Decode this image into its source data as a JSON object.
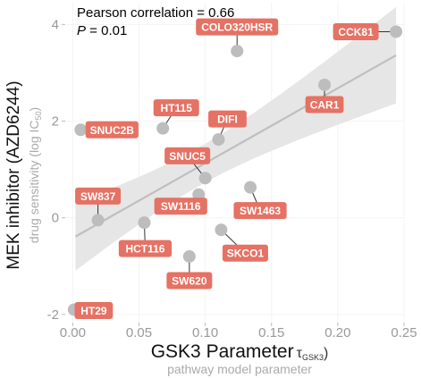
{
  "chart_data": {
    "type": "scatter",
    "xlabel": "GSK3 Parameter",
    "xlabel_symbol": "τ",
    "xlabel_symbol_sub": "GSK3",
    "xlabel_sub": "pathway model parameter",
    "ylabel": "MEK inhibitor (AZD6244)",
    "ylabel_sub": "drug sensitivity (log IC",
    "ylabel_sub_sub": "50",
    "ylabel_sub_end": ")",
    "xlim": [
      -0.005,
      0.25
    ],
    "ylim": [
      -2.15,
      4.45
    ],
    "xticks": [
      0.0,
      0.05,
      0.1,
      0.15,
      0.2,
      0.25
    ],
    "xtick_labels": [
      "0.00",
      "0.05",
      "0.10",
      "0.15",
      "0.20",
      "0.25"
    ],
    "yticks": [
      -2,
      0,
      2,
      4
    ],
    "ytick_labels": [
      "-2",
      "0",
      "2",
      "4"
    ],
    "annotations": {
      "correlation": "Pearson correlation = 0.66",
      "p_symbol": "P",
      "p_value": " = 0.01"
    },
    "regression": {
      "slope": 15.5,
      "intercept": -0.42
    },
    "points": [
      {
        "name": "COLO320HSR",
        "x": 0.124,
        "y": 3.45
      },
      {
        "name": "CCK81",
        "x": 0.244,
        "y": 3.85
      },
      {
        "name": "CAR1",
        "x": 0.19,
        "y": 2.75
      },
      {
        "name": "HT115",
        "x": 0.068,
        "y": 1.85
      },
      {
        "name": "SNUC2B",
        "x": 0.006,
        "y": 1.82
      },
      {
        "name": "DIFI",
        "x": 0.11,
        "y": 1.62
      },
      {
        "name": "SNUC5",
        "x": 0.1,
        "y": 0.82
      },
      {
        "name": "SW1463",
        "x": 0.134,
        "y": 0.63
      },
      {
        "name": "SW837",
        "x": 0.019,
        "y": -0.05
      },
      {
        "name": "SW1116",
        "x": 0.095,
        "y": 0.48
      },
      {
        "name": "HCT116",
        "x": 0.054,
        "y": -0.1
      },
      {
        "name": "SKCO1",
        "x": 0.112,
        "y": -0.25
      },
      {
        "name": "SW620",
        "x": 0.088,
        "y": -0.8
      },
      {
        "name": "HT29",
        "x": 0.001,
        "y": -1.9
      }
    ],
    "colors": {
      "point": "#bdbdbd",
      "label_bg": "#e57264",
      "band": "#e6e6e6",
      "line": "#bfbfbf",
      "grid": "#f3f3f3"
    }
  }
}
